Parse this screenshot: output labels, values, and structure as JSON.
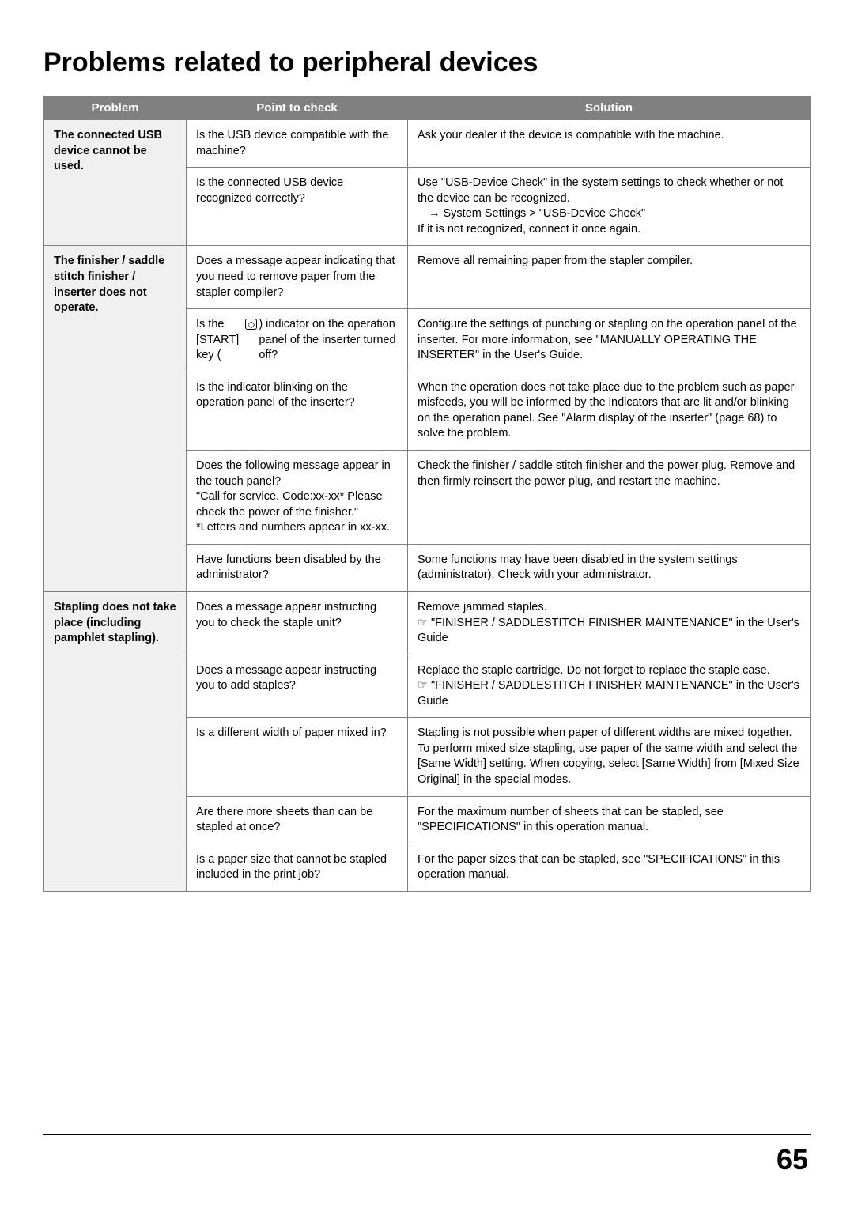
{
  "title": "Problems related to peripheral devices",
  "pageNumber": "65",
  "headers": {
    "problem": "Problem",
    "check": "Point to check",
    "solution": "Solution"
  },
  "p1": {
    "problem": "The connected USB device cannot be used.",
    "r1c": "Is the USB device compatible with the machine?",
    "r1s": "Ask your dealer if the device is compatible with the machine.",
    "r2c": "Is the connected USB device recognized correctly?",
    "r2s_a": "Use \"USB-Device Check\" in the system settings to check whether or not the device can be recognized.",
    "r2s_b": "System Settings > \"USB-Device Check\"",
    "r2s_c": "If it is not recognized, connect it once again."
  },
  "p2": {
    "problem": "The finisher / saddle stitch finisher / inserter does not operate.",
    "r1c": "Does a message appear indicating that you need to remove paper from the stapler compiler?",
    "r1s": "Remove all remaining paper from the stapler compiler.",
    "r2c_a": "Is the [START] key (",
    "r2c_b": ") indicator on the operation panel of the inserter turned off?",
    "r2s": "Configure the settings of punching or stapling on the operation panel of the inserter. For more information, see \"MANUALLY OPERATING THE INSERTER\" in the User's Guide.",
    "r3c": "Is the indicator blinking on the operation panel of the inserter?",
    "r3s": "When the operation does not take place due to the problem such as paper misfeeds, you will be informed by the indicators that are lit and/or blinking on the operation panel. See \"Alarm display of the inserter\" (page 68) to solve the problem.",
    "r4c": "Does the following message appear in the touch panel?\n\"Call for service. Code:xx-xx* Please check the power of the finisher.\"\n*Letters and numbers appear in xx-xx.",
    "r4s": "Check the finisher / saddle stitch finisher and the power plug. Remove and then firmly reinsert the power plug, and restart the machine.",
    "r5c": "Have functions been disabled by the administrator?",
    "r5s": "Some functions may have been disabled in the system settings (administrator). Check with your administrator."
  },
  "p3": {
    "problem": "Stapling does not take place (including pamphlet stapling).",
    "r1c": "Does a message appear instructing you to check the staple unit?",
    "r1s_a": "Remove jammed staples.",
    "r1s_b": "\"FINISHER / SADDLESTITCH FINISHER MAINTENANCE\" in the User's Guide",
    "r2c": "Does a message appear instructing you to add staples?",
    "r2s_a": "Replace the staple cartridge. Do not forget to replace the staple case.",
    "r2s_b": "\"FINISHER / SADDLESTITCH FINISHER MAINTENANCE\" in the User's Guide",
    "r3c": "Is a different width of paper mixed in?",
    "r3s": "Stapling is not possible when paper of different widths are mixed together. To perform mixed size stapling, use paper of the same width and select the [Same Width] setting. When copying, select [Same Width] from [Mixed Size Original] in the special modes.",
    "r4c": "Are there more sheets than can be stapled at once?",
    "r4s": "For the maximum number of sheets that can be stapled, see \"SPECIFICATIONS\" in this operation manual.",
    "r5c": "Is a paper size that cannot be stapled included in the print job?",
    "r5s": "For the paper sizes that can be stapled, see \"SPECIFICATIONS\" in this operation manual."
  }
}
